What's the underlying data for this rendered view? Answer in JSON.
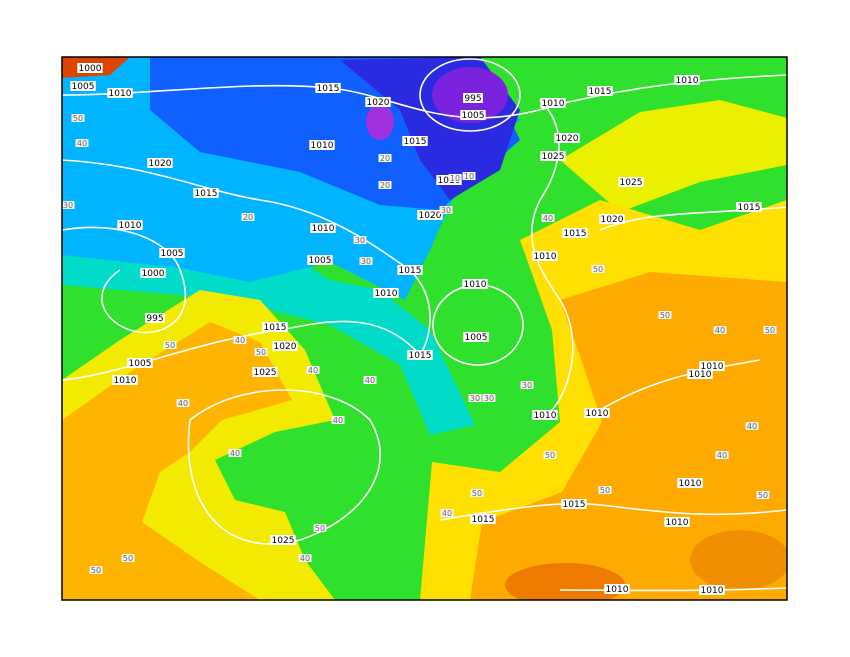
{
  "map": {
    "isobar_labels": [
      "1000",
      "1005",
      "1010",
      "1015",
      "1020",
      "995",
      "1005",
      "1010",
      "1015",
      "1010",
      "1020",
      "1025",
      "1010",
      "1015",
      "1020",
      "1015",
      "1010",
      "1020",
      "1010",
      "1005",
      "1000",
      "995",
      "1010",
      "1005",
      "1015",
      "1010",
      "1010",
      "1005",
      "1015",
      "1015",
      "1020",
      "1025",
      "1005",
      "1010",
      "1010",
      "1015",
      "1025",
      "1020",
      "1015",
      "1010",
      "1010",
      "1010",
      "1010",
      "1015",
      "1015",
      "1010",
      "1010",
      "1010",
      "1010",
      "1025"
    ],
    "thickness_labels": [
      "50",
      "40",
      "30",
      "20",
      "20",
      "20",
      "10",
      "10",
      "30",
      "30",
      "30",
      "40",
      "50",
      "50",
      "40",
      "50",
      "40",
      "40",
      "50",
      "50",
      "50",
      "50",
      "40",
      "50",
      "50",
      "40",
      "50",
      "40",
      "40",
      "50",
      "40",
      "50",
      "40",
      "40",
      "40",
      "30",
      "30",
      "30"
    ]
  }
}
